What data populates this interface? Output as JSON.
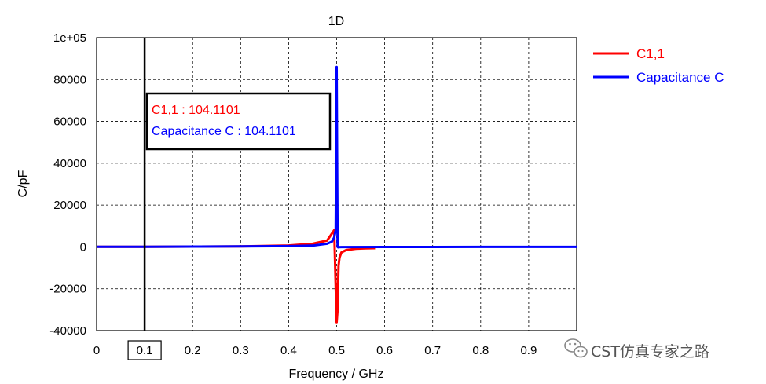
{
  "chart_data": {
    "type": "line",
    "title": "1D",
    "xlabel": "Frequency / GHz",
    "ylabel": "C/pF",
    "xlim": [
      0,
      1.0
    ],
    "ylim": [
      -40000,
      100000
    ],
    "xticks": [
      "0",
      "0.1",
      "0.2",
      "0.3",
      "0.4",
      "0.5",
      "0.6",
      "0.7",
      "0.8",
      "0.9"
    ],
    "yticks": [
      "1e+05",
      "80000",
      "60000",
      "40000",
      "20000",
      "0",
      "-20000",
      "-40000"
    ],
    "ytick_values": [
      100000,
      80000,
      60000,
      40000,
      20000,
      0,
      -20000,
      -40000
    ],
    "grid": true,
    "legend_position": "top-right",
    "series": [
      {
        "name": "C1,1",
        "color": "#ff0000",
        "x": [
          0,
          0.1,
          0.2,
          0.3,
          0.4,
          0.45,
          0.48,
          0.495,
          0.5,
          0.502,
          0.503,
          0.504,
          0.506,
          0.51,
          0.52,
          0.54,
          0.56,
          0.58
        ],
        "y": [
          104,
          104,
          150,
          250,
          700,
          1500,
          3000,
          8000,
          -36000,
          -30000,
          -18000,
          -9000,
          -5000,
          -2600,
          -1500,
          -900,
          -700,
          -600
        ]
      },
      {
        "name": "Capacitance C",
        "color": "#0000ff",
        "x": [
          0,
          0.1,
          0.2,
          0.3,
          0.4,
          0.45,
          0.48,
          0.49,
          0.495,
          0.498,
          0.5,
          0.501,
          0.502,
          0.503,
          0.504,
          0.51,
          0.6,
          0.7,
          0.8,
          0.9,
          1.0
        ],
        "y": [
          104,
          104,
          150,
          250,
          400,
          600,
          1500,
          2500,
          4500,
          8000,
          86000,
          40000,
          0,
          -200,
          -100,
          -50,
          -20,
          -10,
          -5,
          -3,
          -2
        ]
      }
    ],
    "marker": {
      "x_label": "0.1",
      "x": 0.1,
      "entries": [
        {
          "text": "C1,1 : 104.1101",
          "color": "#ff0000"
        },
        {
          "text": "Capacitance C : 104.1101",
          "color": "#0000ff"
        }
      ]
    }
  },
  "watermark": {
    "text": "CST仿真专家之路",
    "icon": "wechat-icon"
  }
}
